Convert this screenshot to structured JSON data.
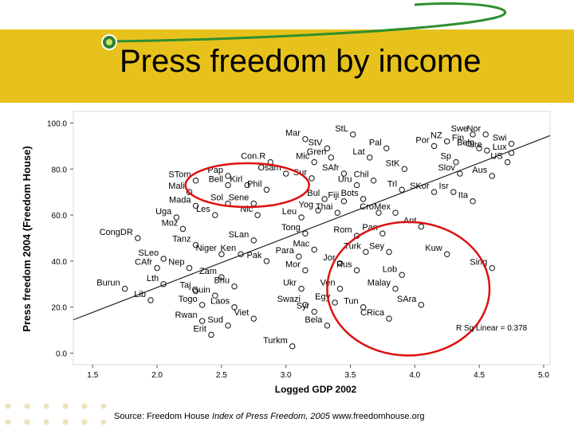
{
  "slide": {
    "title": "Press freedom by income",
    "source_prefix": "Source: Freedom House ",
    "source_italic": "Index of Press Freedom, 2005",
    "source_suffix": " www.freedomhouse.org"
  },
  "chart_data": {
    "type": "scatter",
    "title": "",
    "xlabel": "Logged GDP 2002",
    "ylabel": "Press freedom 2004 (Freedom House)",
    "xlim": [
      1.35,
      5.05
    ],
    "ylim": [
      -5,
      105
    ],
    "x_ticks": [
      "1.5",
      "2.0",
      "2.5",
      "3.0",
      "3.5",
      "4.0",
      "4.5",
      "5.0"
    ],
    "x_tick_values": [
      1.5,
      2.0,
      2.5,
      3.0,
      3.5,
      4.0,
      4.5,
      5.0
    ],
    "y_ticks": [
      "0.0",
      "20.0",
      "40.0",
      "60.0",
      "80.0",
      "100.0"
    ],
    "y_tick_values": [
      0,
      20,
      40,
      60,
      80,
      100
    ],
    "grid": false,
    "fit_line": {
      "x": [
        1.35,
        5.05
      ],
      "y": [
        14.5,
        94.5
      ]
    },
    "r_squared_label": "R Sq Linear = 0.378",
    "point_color": "#222222",
    "label_color": "#000000",
    "annotations": [
      {
        "shape": "ellipse",
        "cx": 2.7,
        "cy": 73,
        "rx": 0.48,
        "ry": 9.5,
        "color": "#dd1111"
      },
      {
        "shape": "ellipse",
        "cx": 3.95,
        "cy": 28,
        "rx": 0.63,
        "ry": 29,
        "color": "#dd1111"
      }
    ],
    "points": [
      {
        "label": "Swe",
        "x": 4.45,
        "y": 95
      },
      {
        "label": "Nor",
        "x": 4.55,
        "y": 95
      },
      {
        "label": "Swi",
        "x": 4.75,
        "y": 91
      },
      {
        "label": "Fin",
        "x": 4.42,
        "y": 91
      },
      {
        "label": "NZ",
        "x": 4.25,
        "y": 92
      },
      {
        "label": "Lux",
        "x": 4.75,
        "y": 87
      },
      {
        "label": "Belg",
        "x": 4.5,
        "y": 89
      },
      {
        "label": "Ire",
        "x": 4.56,
        "y": 88
      },
      {
        "label": "US",
        "x": 4.72,
        "y": 83
      },
      {
        "label": "Sp",
        "x": 4.32,
        "y": 83
      },
      {
        "label": "Slov",
        "x": 4.35,
        "y": 78
      },
      {
        "label": "Aus",
        "x": 4.6,
        "y": 77
      },
      {
        "label": "Por",
        "x": 4.15,
        "y": 90
      },
      {
        "label": "Isr",
        "x": 4.3,
        "y": 70
      },
      {
        "label": "Ita",
        "x": 4.45,
        "y": 66
      },
      {
        "label": "SKor",
        "x": 4.15,
        "y": 70
      },
      {
        "label": "Trl",
        "x": 3.9,
        "y": 71
      },
      {
        "label": "Mar",
        "x": 3.15,
        "y": 93
      },
      {
        "label": "StL",
        "x": 3.52,
        "y": 95
      },
      {
        "label": "StV",
        "x": 3.32,
        "y": 89
      },
      {
        "label": "Pal",
        "x": 3.78,
        "y": 89
      },
      {
        "label": "Mic",
        "x": 3.22,
        "y": 83
      },
      {
        "label": "Gren",
        "x": 3.35,
        "y": 85
      },
      {
        "label": "Lat",
        "x": 3.65,
        "y": 85
      },
      {
        "label": "StK",
        "x": 3.92,
        "y": 80
      },
      {
        "label": "Con.R",
        "x": 2.88,
        "y": 83
      },
      {
        "label": "Osam",
        "x": 3.0,
        "y": 78
      },
      {
        "label": "Sur",
        "x": 3.2,
        "y": 76
      },
      {
        "label": "SAfr",
        "x": 3.45,
        "y": 78
      },
      {
        "label": "Chil",
        "x": 3.68,
        "y": 75
      },
      {
        "label": "Uru",
        "x": 3.55,
        "y": 73
      },
      {
        "label": "Bul",
        "x": 3.3,
        "y": 67
      },
      {
        "label": "Fiji",
        "x": 3.45,
        "y": 66
      },
      {
        "label": "Bots",
        "x": 3.6,
        "y": 67
      },
      {
        "label": "Yog",
        "x": 3.25,
        "y": 62
      },
      {
        "label": "Thai",
        "x": 3.4,
        "y": 61
      },
      {
        "label": "Cro",
        "x": 3.72,
        "y": 61
      },
      {
        "label": "Mex",
        "x": 3.85,
        "y": 61
      },
      {
        "label": "Leu",
        "x": 3.12,
        "y": 59
      },
      {
        "label": "Tong",
        "x": 3.15,
        "y": 52
      },
      {
        "label": "Rom",
        "x": 3.55,
        "y": 51
      },
      {
        "label": "Pan",
        "x": 3.75,
        "y": 52
      },
      {
        "label": "Ant",
        "x": 4.05,
        "y": 55
      },
      {
        "label": "Kuw",
        "x": 4.25,
        "y": 43
      },
      {
        "label": "Sing",
        "x": 4.6,
        "y": 37
      },
      {
        "label": "Turk",
        "x": 3.62,
        "y": 44
      },
      {
        "label": "Sey",
        "x": 3.8,
        "y": 44
      },
      {
        "label": "Mac",
        "x": 3.22,
        "y": 45
      },
      {
        "label": "Para",
        "x": 3.1,
        "y": 42
      },
      {
        "label": "Jor",
        "x": 3.42,
        "y": 39
      },
      {
        "label": "Mor",
        "x": 3.15,
        "y": 36
      },
      {
        "label": "Rus",
        "x": 3.55,
        "y": 36
      },
      {
        "label": "Lob",
        "x": 3.9,
        "y": 34
      },
      {
        "label": "Ukr",
        "x": 3.12,
        "y": 28
      },
      {
        "label": "Ven",
        "x": 3.42,
        "y": 28
      },
      {
        "label": "Malay",
        "x": 3.85,
        "y": 28
      },
      {
        "label": "Egy",
        "x": 3.38,
        "y": 22
      },
      {
        "label": "Tun",
        "x": 3.6,
        "y": 20
      },
      {
        "label": "SAra",
        "x": 4.05,
        "y": 21
      },
      {
        "label": "Swazi",
        "x": 3.15,
        "y": 21
      },
      {
        "label": "Syr",
        "x": 3.22,
        "y": 18
      },
      {
        "label": "CRica",
        "x": 3.8,
        "y": 15
      },
      {
        "label": "Bela",
        "x": 3.32,
        "y": 12
      },
      {
        "label": "Turkm",
        "x": 3.05,
        "y": 3
      },
      {
        "label": "Kirl",
        "x": 2.7,
        "y": 73
      },
      {
        "label": "Bell",
        "x": 2.55,
        "y": 73
      },
      {
        "label": "Phil",
        "x": 2.85,
        "y": 71
      },
      {
        "label": "Pap",
        "x": 2.55,
        "y": 77
      },
      {
        "label": "Sol",
        "x": 2.55,
        "y": 65
      },
      {
        "label": "Sene",
        "x": 2.75,
        "y": 65
      },
      {
        "label": "Nic",
        "x": 2.78,
        "y": 60
      },
      {
        "label": "Les",
        "x": 2.45,
        "y": 60
      },
      {
        "label": "STom",
        "x": 2.3,
        "y": 75
      },
      {
        "label": "Mali",
        "x": 2.25,
        "y": 70
      },
      {
        "label": "Mada",
        "x": 2.3,
        "y": 64
      },
      {
        "label": "Uga",
        "x": 2.15,
        "y": 59
      },
      {
        "label": "Moz",
        "x": 2.2,
        "y": 54
      },
      {
        "label": "CongDR",
        "x": 1.85,
        "y": 50
      },
      {
        "label": "Tanz",
        "x": 2.3,
        "y": 47
      },
      {
        "label": "SLan",
        "x": 2.75,
        "y": 49
      },
      {
        "label": "Niger",
        "x": 2.5,
        "y": 43
      },
      {
        "label": "Ken",
        "x": 2.65,
        "y": 43
      },
      {
        "label": "Pak",
        "x": 2.85,
        "y": 40
      },
      {
        "label": "SLeo",
        "x": 2.05,
        "y": 41
      },
      {
        "label": "Nep",
        "x": 2.25,
        "y": 37
      },
      {
        "label": "CAfr",
        "x": 2.0,
        "y": 37
      },
      {
        "label": "Zam",
        "x": 2.5,
        "y": 33
      },
      {
        "label": "Bhu",
        "x": 2.6,
        "y": 29
      },
      {
        "label": "Lth",
        "x": 2.05,
        "y": 30
      },
      {
        "label": "Burun",
        "x": 1.75,
        "y": 28
      },
      {
        "label": "Taj",
        "x": 2.3,
        "y": 27
      },
      {
        "label": "Guin",
        "x": 2.45,
        "y": 25
      },
      {
        "label": "Lib",
        "x": 1.95,
        "y": 23
      },
      {
        "label": "Togo",
        "x": 2.35,
        "y": 21
      },
      {
        "label": "Laos",
        "x": 2.6,
        "y": 20
      },
      {
        "label": "Rwan",
        "x": 2.35,
        "y": 14
      },
      {
        "label": "Viet",
        "x": 2.75,
        "y": 15
      },
      {
        "label": "Sud",
        "x": 2.55,
        "y": 12
      },
      {
        "label": "Erit",
        "x": 2.42,
        "y": 8
      }
    ]
  }
}
